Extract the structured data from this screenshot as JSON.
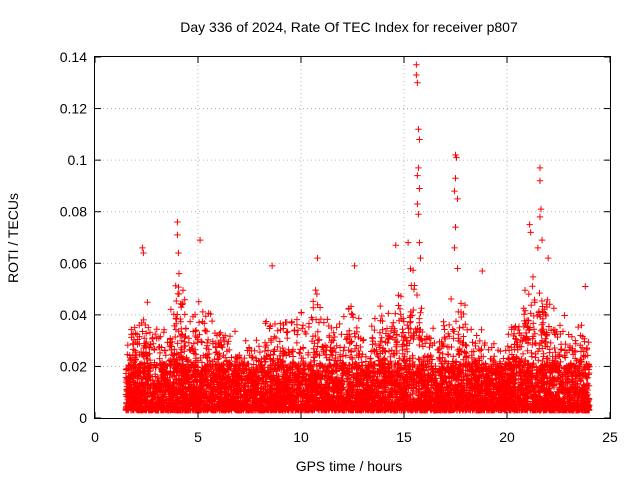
{
  "chart_data": {
    "type": "scatter",
    "title": "Day 336 of 2024, Rate Of TEC Index for receiver p807",
    "xlabel": "GPS time / hours",
    "ylabel": "ROTI / TECUs",
    "xlim": [
      0,
      25
    ],
    "ylim": [
      0,
      0.14
    ],
    "x_ticks": [
      0,
      5,
      10,
      15,
      20,
      25
    ],
    "y_ticks": [
      0,
      0.02,
      0.04,
      0.06,
      0.08,
      0.1,
      0.12,
      0.14
    ],
    "x_tick_labels": [
      "0",
      "5",
      "10",
      "15",
      "20",
      "25"
    ],
    "y_tick_labels": [
      "0",
      "0.02",
      "0.04",
      "0.06",
      "0.08",
      "0.1",
      "0.12",
      "0.14"
    ],
    "grid": true,
    "marker": "plus",
    "series_color": "#ff0000",
    "data_range": {
      "x_start": 1.5,
      "x_end": 24.0
    },
    "envelope": {
      "description_hours": "approximate upper envelope of scattered ROTI values",
      "x": [
        1.5,
        2.0,
        2.5,
        3.0,
        3.5,
        4.0,
        4.5,
        5.0,
        5.5,
        6.0,
        6.5,
        7.0,
        7.5,
        8.0,
        8.5,
        9.0,
        9.5,
        10.0,
        10.5,
        11.0,
        11.5,
        12.0,
        12.5,
        13.0,
        13.5,
        14.0,
        14.5,
        15.0,
        15.5,
        16.0,
        16.5,
        17.0,
        17.5,
        18.0,
        18.5,
        19.0,
        19.5,
        20.0,
        20.5,
        21.0,
        21.5,
        22.0,
        22.5,
        23.0,
        23.5,
        24.0
      ],
      "y": [
        0.035,
        0.04,
        0.05,
        0.035,
        0.04,
        0.065,
        0.04,
        0.05,
        0.045,
        0.04,
        0.035,
        0.035,
        0.03,
        0.035,
        0.045,
        0.04,
        0.045,
        0.05,
        0.055,
        0.05,
        0.04,
        0.04,
        0.05,
        0.035,
        0.045,
        0.045,
        0.05,
        0.06,
        0.07,
        0.04,
        0.035,
        0.045,
        0.05,
        0.045,
        0.04,
        0.035,
        0.03,
        0.035,
        0.045,
        0.055,
        0.06,
        0.05,
        0.045,
        0.04,
        0.045,
        0.03
      ]
    },
    "highlights": [
      {
        "x": 2.3,
        "y": 0.066
      },
      {
        "x": 2.35,
        "y": 0.064
      },
      {
        "x": 4.0,
        "y": 0.076
      },
      {
        "x": 4.0,
        "y": 0.071
      },
      {
        "x": 4.05,
        "y": 0.064
      },
      {
        "x": 5.1,
        "y": 0.069
      },
      {
        "x": 8.6,
        "y": 0.059
      },
      {
        "x": 10.8,
        "y": 0.062
      },
      {
        "x": 12.6,
        "y": 0.059
      },
      {
        "x": 14.6,
        "y": 0.067
      },
      {
        "x": 15.2,
        "y": 0.068
      },
      {
        "x": 15.6,
        "y": 0.137
      },
      {
        "x": 15.6,
        "y": 0.133
      },
      {
        "x": 15.65,
        "y": 0.13
      },
      {
        "x": 15.7,
        "y": 0.112
      },
      {
        "x": 15.75,
        "y": 0.108
      },
      {
        "x": 15.7,
        "y": 0.097
      },
      {
        "x": 15.65,
        "y": 0.094
      },
      {
        "x": 15.75,
        "y": 0.089
      },
      {
        "x": 15.65,
        "y": 0.083
      },
      {
        "x": 15.7,
        "y": 0.079
      },
      {
        "x": 15.75,
        "y": 0.068
      },
      {
        "x": 15.8,
        "y": 0.062
      },
      {
        "x": 17.5,
        "y": 0.102
      },
      {
        "x": 17.55,
        "y": 0.101
      },
      {
        "x": 17.5,
        "y": 0.093
      },
      {
        "x": 17.45,
        "y": 0.088
      },
      {
        "x": 17.6,
        "y": 0.085
      },
      {
        "x": 17.5,
        "y": 0.074
      },
      {
        "x": 17.45,
        "y": 0.066
      },
      {
        "x": 17.6,
        "y": 0.058
      },
      {
        "x": 18.8,
        "y": 0.057
      },
      {
        "x": 21.1,
        "y": 0.075
      },
      {
        "x": 21.15,
        "y": 0.072
      },
      {
        "x": 21.6,
        "y": 0.097
      },
      {
        "x": 21.6,
        "y": 0.092
      },
      {
        "x": 21.65,
        "y": 0.081
      },
      {
        "x": 21.6,
        "y": 0.078
      },
      {
        "x": 21.7,
        "y": 0.069
      },
      {
        "x": 21.5,
        "y": 0.066
      },
      {
        "x": 22.0,
        "y": 0.062
      },
      {
        "x": 23.8,
        "y": 0.051
      }
    ],
    "baseline_min": 0.003
  }
}
